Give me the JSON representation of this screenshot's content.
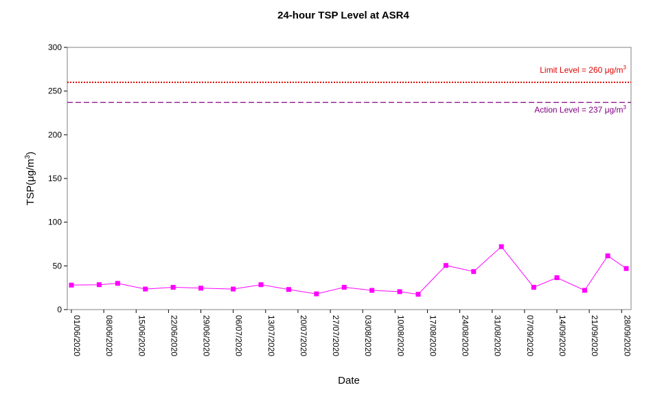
{
  "chart_data": {
    "type": "line",
    "title": "24-hour TSP Level at ASR4",
    "xlabel": "Date",
    "ylabel": "TSP(μg/m3)",
    "ylabel_parts": {
      "base": "TSP(",
      "unit": "μg/m",
      "sup": "3",
      "close": ")"
    },
    "ylim": [
      0,
      300
    ],
    "yticks": [
      0,
      50,
      100,
      150,
      200,
      250,
      300
    ],
    "xlim": [
      "2020-06-01",
      "2020-09-29"
    ],
    "xticks": [
      "01/06/2020",
      "08/06/2020",
      "15/06/2020",
      "22/06/2020",
      "29/06/2020",
      "06/07/2020",
      "13/07/2020",
      "20/07/2020",
      "27/07/2020",
      "03/08/2020",
      "10/08/2020",
      "17/08/2020",
      "24/08/2020",
      "31/08/2020",
      "07/09/2020",
      "14/09/2020",
      "21/09/2020",
      "28/09/2020"
    ],
    "series": [
      {
        "color": "#ff00ff",
        "marker": "square",
        "points": [
          {
            "x": "2020-06-01",
            "y": 28
          },
          {
            "x": "2020-06-07",
            "y": 28.5
          },
          {
            "x": "2020-06-11",
            "y": 30
          },
          {
            "x": "2020-06-17",
            "y": 23.5
          },
          {
            "x": "2020-06-23",
            "y": 25.5
          },
          {
            "x": "2020-06-29",
            "y": 24.5
          },
          {
            "x": "2020-07-06",
            "y": 23.5
          },
          {
            "x": "2020-07-12",
            "y": 28.5
          },
          {
            "x": "2020-07-18",
            "y": 23
          },
          {
            "x": "2020-07-24",
            "y": 18
          },
          {
            "x": "2020-07-30",
            "y": 25.5
          },
          {
            "x": "2020-08-05",
            "y": 22
          },
          {
            "x": "2020-08-11",
            "y": 20.5
          },
          {
            "x": "2020-08-15",
            "y": 17.5
          },
          {
            "x": "2020-08-21",
            "y": 50.5
          },
          {
            "x": "2020-08-27",
            "y": 43.5
          },
          {
            "x": "2020-09-02",
            "y": 72
          },
          {
            "x": "2020-09-09",
            "y": 25.5
          },
          {
            "x": "2020-09-14",
            "y": 36.5
          },
          {
            "x": "2020-09-20",
            "y": 22
          },
          {
            "x": "2020-09-25",
            "y": 61.5
          },
          {
            "x": "2020-09-29",
            "y": 47
          }
        ]
      }
    ],
    "reference_lines": [
      {
        "value": 260,
        "color": "#dd0000",
        "style": "dotted",
        "label_text": "Limit Level  = 260 μg/m",
        "label_sup": "3",
        "label_position": "above-right"
      },
      {
        "value": 237,
        "color": "#800080",
        "style": "dashed",
        "label_text": "Action Level  = 237 μg/m",
        "label_sup": "3",
        "label_position": "below-right"
      }
    ],
    "grid": false,
    "legend": "none"
  }
}
